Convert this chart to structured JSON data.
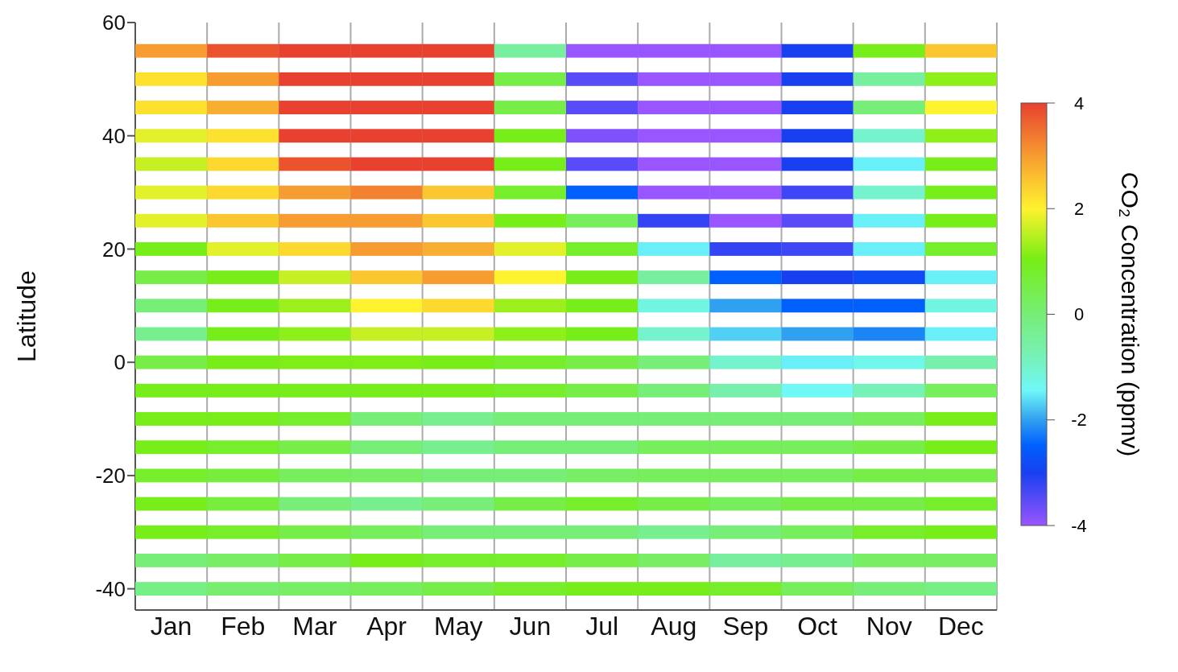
{
  "chart_data": {
    "type": "heatmap",
    "grid": "x",
    "ylabel": "Latitude",
    "clabel": "CO₂ Concentration (ppmv)",
    "categories": [
      "Jan",
      "Feb",
      "Mar",
      "Apr",
      "May",
      "Jun",
      "Jul",
      "Aug",
      "Sep",
      "Oct",
      "Nov",
      "Dec"
    ],
    "y_categories": [
      "60",
      null,
      null,
      null,
      "40",
      null,
      null,
      null,
      "20",
      null,
      null,
      null,
      "0",
      null,
      null,
      null,
      "-20",
      null,
      null,
      null,
      "-40"
    ],
    "clim": [
      -4,
      4
    ],
    "cticks": [
      -4,
      -2,
      0,
      2,
      4
    ],
    "cells": [
      [
        null,
        null,
        null,
        null,
        null,
        null,
        null,
        null,
        null,
        null,
        null,
        null
      ],
      [
        3,
        3.8,
        4,
        4,
        4,
        -0.5,
        -4,
        -4,
        -4,
        -3,
        1,
        2.5
      ],
      [
        2.2,
        3,
        4,
        4,
        4,
        0.5,
        -3.5,
        -4,
        -4,
        -3,
        -0.5,
        1.2
      ],
      [
        2.2,
        2.8,
        4,
        4,
        4,
        0.5,
        -3.5,
        -4,
        -4,
        -3,
        0,
        2
      ],
      [
        1.8,
        2.2,
        4,
        4,
        4,
        1,
        -3.8,
        -4,
        -4,
        -3,
        -1,
        1.2
      ],
      [
        1.6,
        2.3,
        3.8,
        4,
        4,
        1,
        -3.5,
        -4,
        -4,
        -3,
        -1.5,
        1
      ],
      [
        1.8,
        2.3,
        3,
        3.3,
        2.5,
        0.8,
        -2.5,
        -4,
        -4,
        -3.3,
        -1,
        1
      ],
      [
        1.8,
        2.5,
        3,
        3,
        2.5,
        1,
        0.3,
        -3.2,
        -4,
        -3.5,
        -1.5,
        1
      ],
      [
        1,
        1.8,
        2.3,
        3,
        2.8,
        1.8,
        0.8,
        -1.5,
        -3.2,
        -3.3,
        -1.5,
        0.8
      ],
      [
        0.5,
        1,
        1.6,
        2.5,
        3,
        2,
        1,
        -0.5,
        -2.5,
        -3,
        -2.8,
        -1.5
      ],
      [
        0,
        1,
        1.3,
        2,
        2.3,
        1.3,
        1,
        -1.2,
        -2,
        -2.5,
        -2.5,
        -1.2
      ],
      [
        -0.3,
        1,
        1.2,
        1.6,
        1.6,
        1.2,
        1,
        -1,
        -1.7,
        -2,
        -2.2,
        -1.5
      ],
      [
        0.5,
        1,
        1.1,
        1.1,
        1,
        0.8,
        0.5,
        0,
        -1,
        -1.5,
        -1.3,
        -0.7
      ],
      [
        1,
        1,
        1,
        1,
        1,
        0.8,
        0.5,
        0,
        -0.7,
        -1.4,
        -0.8,
        0.3
      ],
      [
        1,
        1,
        0.8,
        0,
        -0.3,
        0,
        0,
        0,
        0,
        0,
        0.3,
        1
      ],
      [
        1,
        0.8,
        0.5,
        0,
        -0.3,
        0,
        0,
        0.3,
        0.3,
        0.3,
        0.5,
        1
      ],
      [
        0.8,
        0.6,
        0.3,
        0.2,
        0,
        0,
        0.2,
        0.3,
        0.3,
        0.3,
        0.5,
        0.5
      ],
      [
        1,
        0.6,
        0,
        -0.3,
        0,
        0.5,
        0.8,
        0.5,
        0.3,
        0.5,
        0.5,
        0.8
      ],
      [
        1,
        0.8,
        0.5,
        0.3,
        0,
        0,
        0,
        -0.3,
        0,
        0.3,
        0.8,
        1
      ],
      [
        0,
        0.2,
        0.5,
        1,
        0.8,
        0.8,
        0.5,
        0.2,
        -0.5,
        -0.3,
        0.2,
        0.2
      ],
      [
        -0.2,
        0.1,
        0.2,
        0.3,
        0.5,
        0.8,
        1,
        1,
        0.8,
        0.3,
        0,
        -0.2
      ]
    ]
  }
}
